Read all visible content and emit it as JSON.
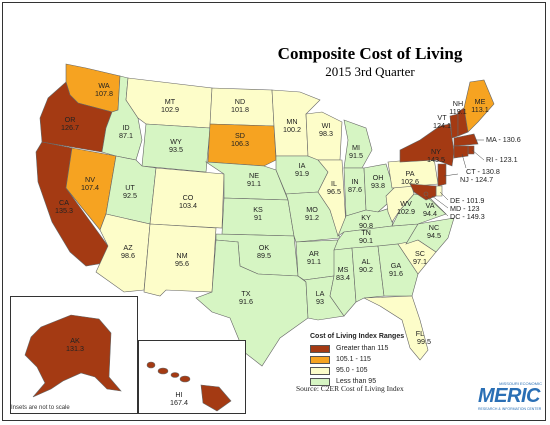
{
  "title": "Composite Cost of Living",
  "subtitle": "2015 3rd Quarter",
  "colors": {
    "greater_than_115": "#a43a13",
    "r105_115": "#f6a321",
    "r95_105": "#fdfdc9",
    "less_than_95": "#d6f5c3"
  },
  "legend": {
    "title": "Cost of Living Index Ranges",
    "items": [
      {
        "label": "Greater than 115",
        "color": "#a43a13"
      },
      {
        "label": "105.1 - 115",
        "color": "#f6a321"
      },
      {
        "label": "95.0 - 105",
        "color": "#fdfdc9"
      },
      {
        "label": "Less than 95",
        "color": "#d6f5c3"
      }
    ]
  },
  "source": "Source: C2ER Cost of Living Index",
  "insets_note": "Insets are not to scale",
  "logo": {
    "small": "MISSOURI ECONOMIC",
    "main": "MERIC",
    "sub": "RESEARCH & INFORMATION CENTER"
  },
  "states": {
    "WA": "107.8",
    "OR": "126.7",
    "CA": "135.3",
    "NV": "107.4",
    "ID": "87.1",
    "MT": "102.9",
    "WY": "93.5",
    "UT": "92.5",
    "AZ": "98.6",
    "CO": "103.4",
    "NM": "95.6",
    "ND": "101.8",
    "SD": "106.3",
    "NE": "91.1",
    "KS": "91",
    "OK": "89.5",
    "TX": "91.6",
    "MN": "100.2",
    "IA": "91.9",
    "MO": "91.2",
    "AR": "91.1",
    "LA": "93",
    "WI": "98.3",
    "IL": "96.5",
    "MI": "91.5",
    "IN": "87.6",
    "OH": "93.8",
    "KY": "90.8",
    "TN": "90.1",
    "MS": "83.4",
    "AL": "90.2",
    "GA": "91.6",
    "FL": "99.5",
    "SC": "97.1",
    "NC": "94.5",
    "VA": "94.4",
    "WV": "102.9",
    "PA": "102.6",
    "NY": "143.5",
    "VT": "124.1",
    "NH": "119.1",
    "ME": "113.1",
    "MA": "130.6",
    "RI": "123.1",
    "CT": "130.8",
    "NJ": "124.7",
    "DE": "101.9",
    "MD": "123",
    "DC": "149.3",
    "AK": "131.3",
    "HI": "167.4"
  },
  "callouts": {
    "MA": "MA - 130.6",
    "RI": "RI - 123.1",
    "CT": "CT - 130.8",
    "NJ": "NJ - 124.7",
    "DE": "DE - 101.9",
    "MD": "MD - 123",
    "DC": "DC - 149.3"
  }
}
